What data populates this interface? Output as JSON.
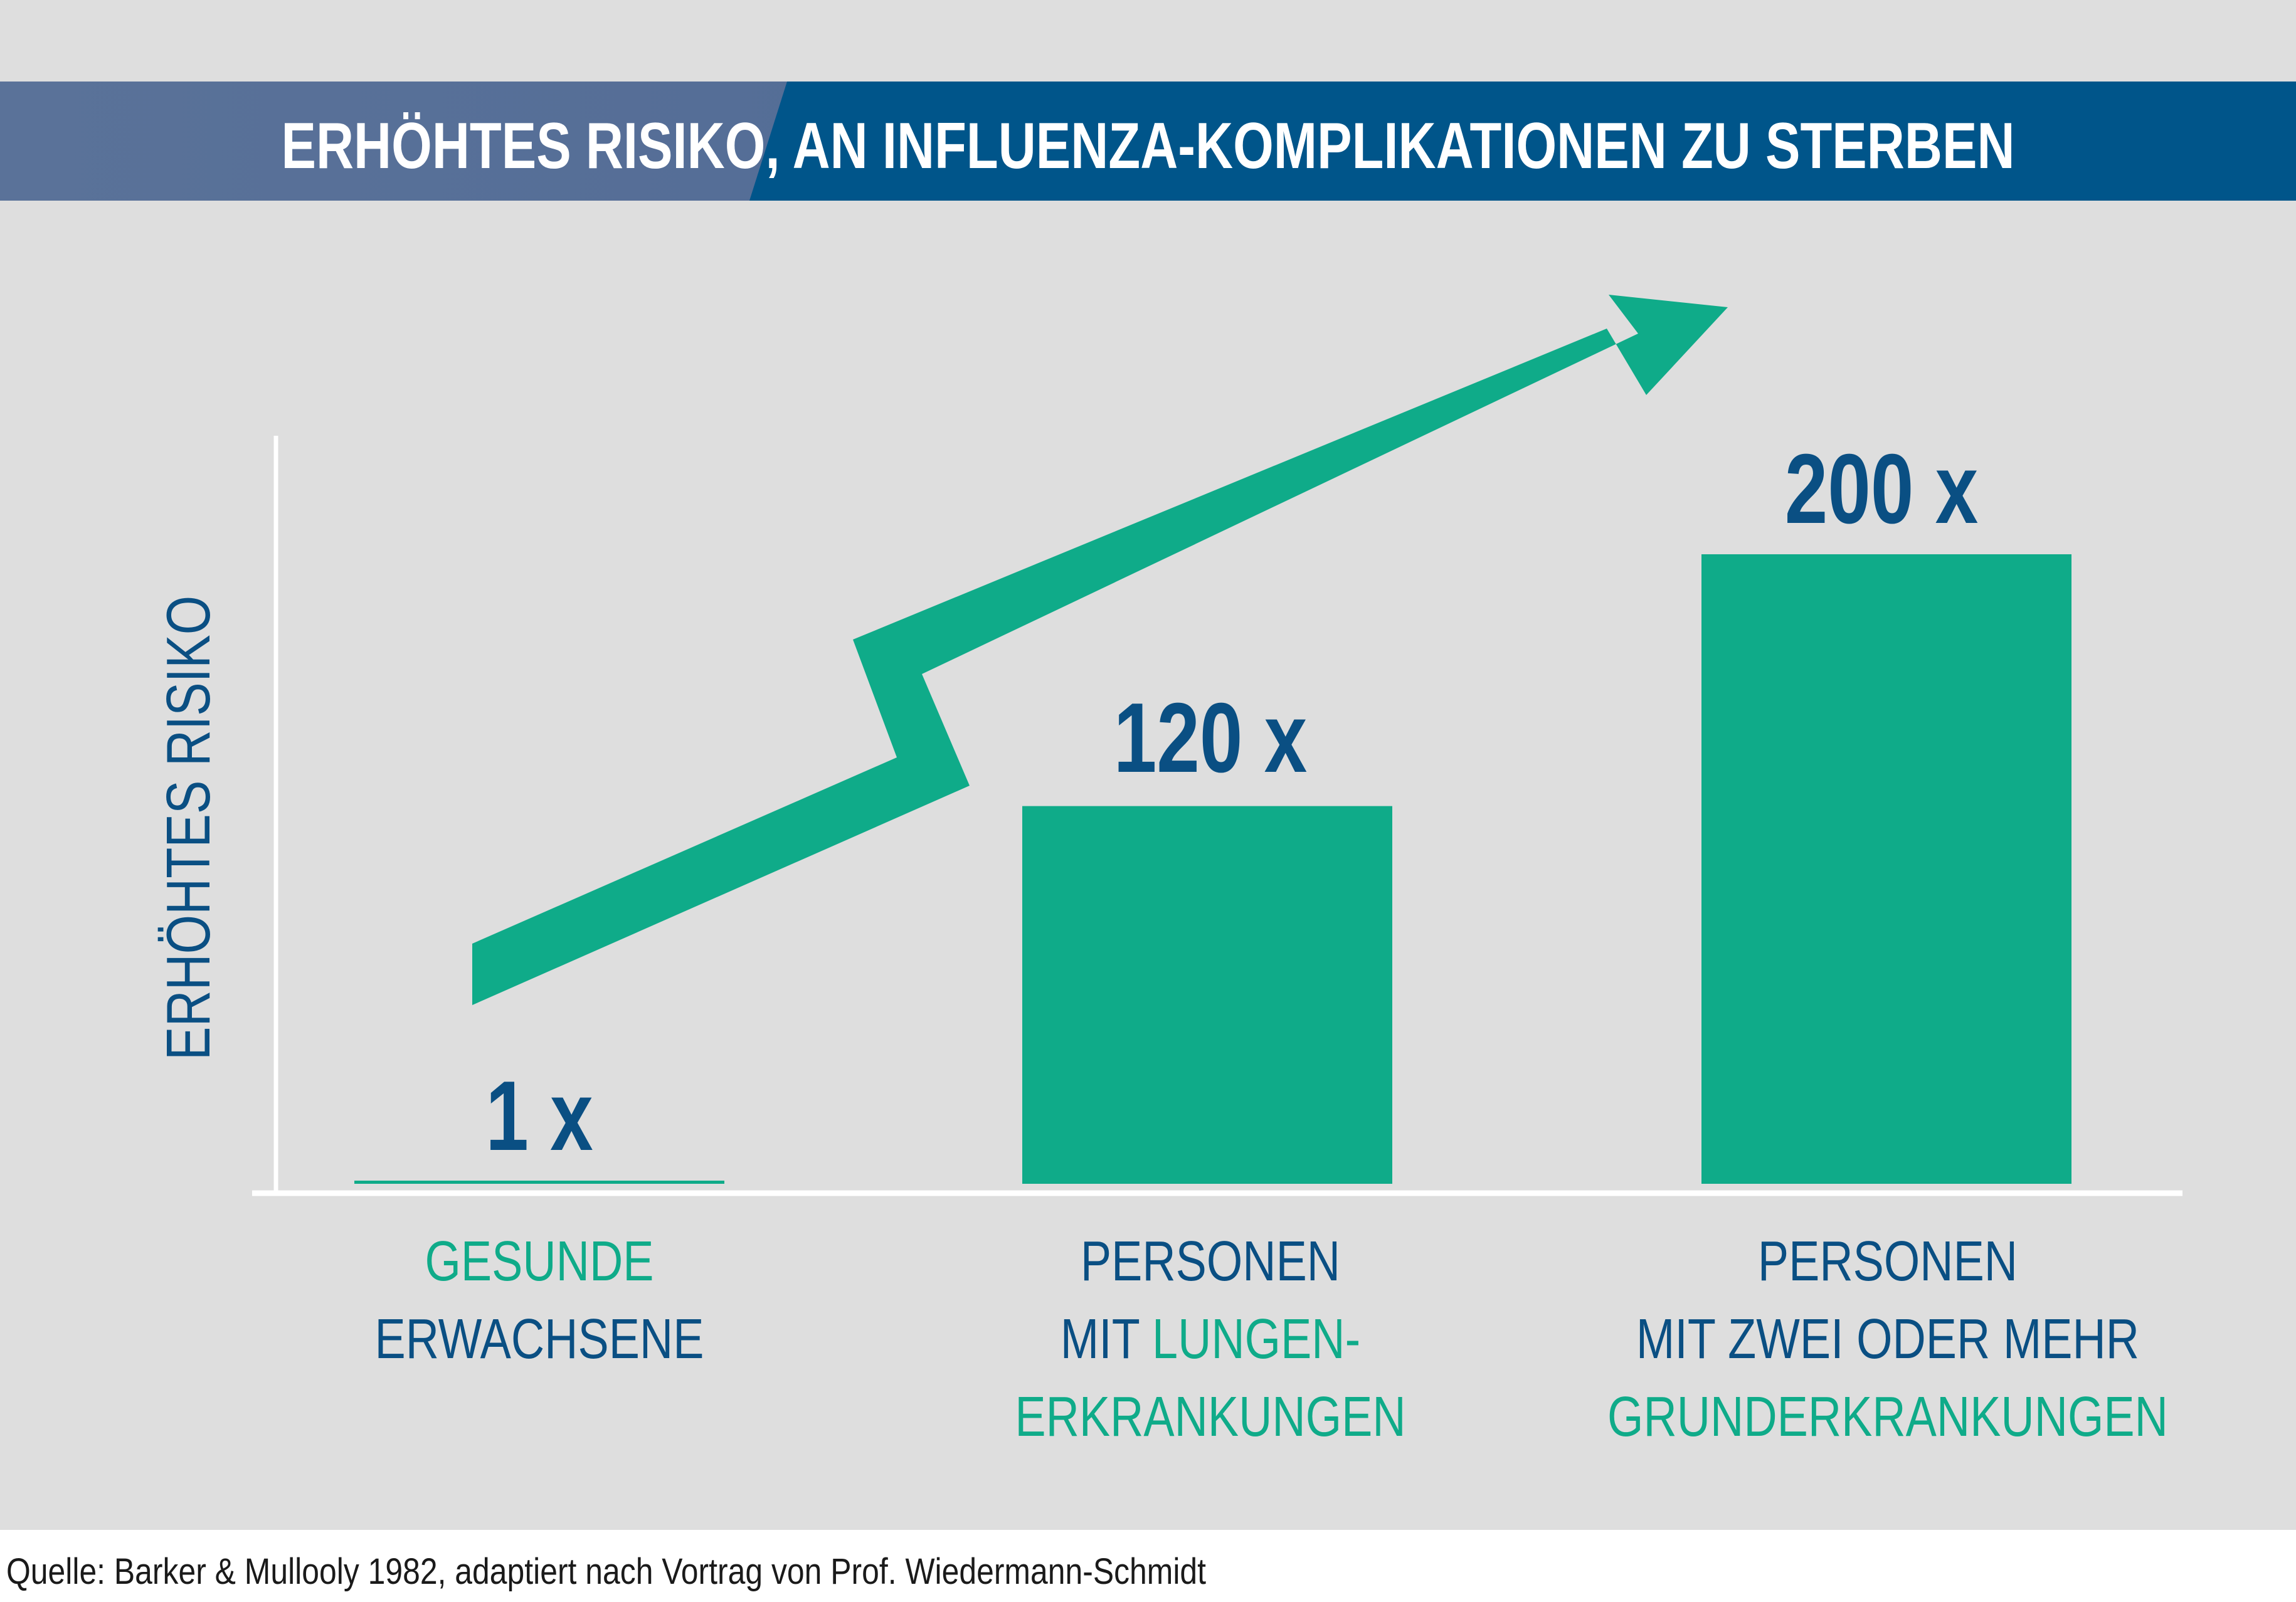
{
  "title": "ERHÖHTES RISIKO, AN INFLUENZA-KOMPLIKATIONEN ZU STERBEN",
  "source": "Quelle: Barker & Mullooly 1982, adaptiert nach Vortrag von Prof. Wiedermann-Schmidt",
  "colors": {
    "background": "#dedede",
    "banner_dark": "#00558a",
    "banner_light": "#5a7299",
    "accent_green": "#0fab89",
    "text_blue": "#0a4f83",
    "axis": "#ffffff"
  },
  "chart_data": {
    "type": "bar",
    "title": "ERHÖHTES RISIKO, AN INFLUENZA-KOMPLIKATIONEN ZU STERBEN",
    "xlabel": "",
    "ylabel": "ERHÖHTES RISIKO",
    "ylim": [
      0,
      200
    ],
    "grid": false,
    "legend": "none",
    "categories": [
      "GESUNDE ERWACHSENE",
      "PERSONEN MIT LUNGEN-ERKRANKUNGEN",
      "PERSONEN MIT ZWEI ODER MEHR GRUNDERKRANKUNGEN"
    ],
    "values": [
      1,
      120,
      200
    ],
    "value_labels": [
      "1 x",
      "120 x",
      "200 x"
    ],
    "category_lines": [
      [
        {
          "text": "GESUNDE",
          "color": "green"
        },
        {
          "text": "ERWACHSENE",
          "color": "blue"
        }
      ],
      [
        {
          "text": "PERSONEN",
          "color": "blue"
        },
        {
          "text": "MIT ",
          "color": "blue",
          "inline_next": "LUNGEN-"
        },
        {
          "text": "ERKRANKUNGEN",
          "color": "green"
        }
      ],
      [
        {
          "text": "PERSONEN",
          "color": "blue"
        },
        {
          "text": "MIT ZWEI ODER MEHR",
          "color": "blue"
        },
        {
          "text": "GRUNDERKRANKUNGEN",
          "color": "green"
        }
      ]
    ],
    "trend_arrow": {
      "direction": "up-right",
      "color": "#0fab89"
    }
  }
}
